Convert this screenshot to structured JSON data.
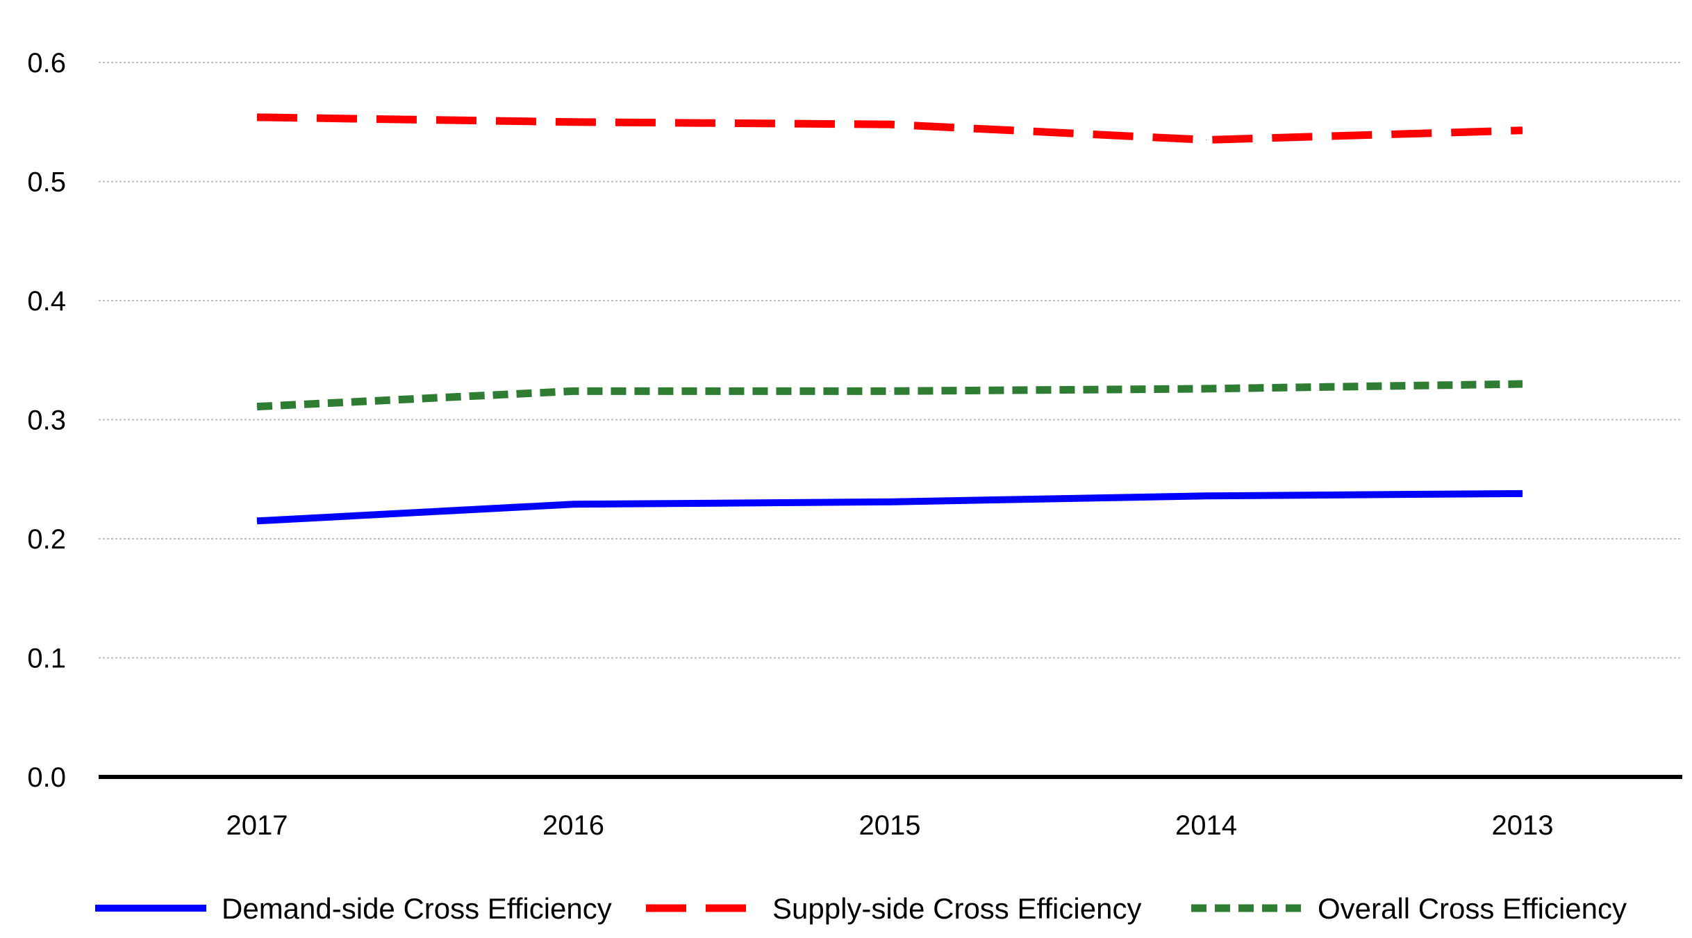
{
  "chart_data": {
    "type": "line",
    "title": "",
    "xlabel": "",
    "ylabel": "",
    "categories": [
      "2017",
      "2016",
      "2015",
      "2014",
      "2013"
    ],
    "ylim": [
      0.0,
      0.6
    ],
    "yticks": [
      "0.0",
      "0.1",
      "0.2",
      "0.3",
      "0.4",
      "0.5",
      "0.6"
    ],
    "grid": true,
    "legend_position": "bottom",
    "series": [
      {
        "name": "Demand-side Cross Efficiency",
        "values": [
          0.215,
          0.229,
          0.231,
          0.236,
          0.238
        ],
        "color": "#0000ff",
        "style": "solid"
      },
      {
        "name": "Supply-side Cross Efficiency",
        "values": [
          0.554,
          0.55,
          0.548,
          0.535,
          0.543
        ],
        "color": "#ff0000",
        "style": "long-dash"
      },
      {
        "name": "Overall Cross Efficiency",
        "values": [
          0.311,
          0.324,
          0.324,
          0.326,
          0.33
        ],
        "color": "#2e7d32",
        "style": "short-dash"
      }
    ]
  }
}
